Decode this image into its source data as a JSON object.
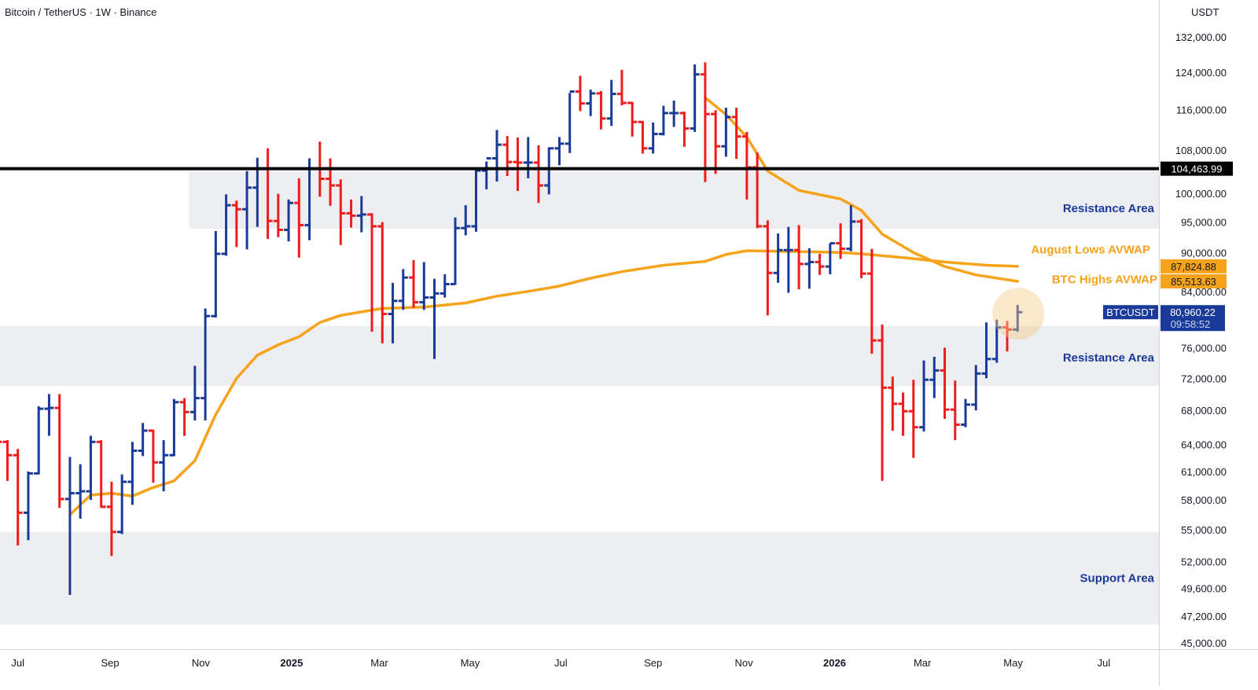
{
  "header": {
    "title": "Bitcoin / TetherUS · 1W · Binance"
  },
  "price_axis": {
    "unit": "USDT"
  },
  "colors": {
    "up": "#1a3a9a",
    "down": "#f01c1c",
    "avwap": "#f7a21b",
    "zone": "#eceef2",
    "level": "#000000",
    "label": "#1a3a9a",
    "last_price_bg": "#1a3a9a"
  },
  "chart_data": {
    "type": "ohlc",
    "title": "Bitcoin / TetherUS · 1W · Binance",
    "scale": "log",
    "ylim": [
      44500,
      140000
    ],
    "y_ticks": [
      {
        "value": 132000,
        "label": "132,000.00"
      },
      {
        "value": 124000,
        "label": "124,000.00"
      },
      {
        "value": 116000,
        "label": "116,000.00"
      },
      {
        "value": 108000,
        "label": "108,000.00"
      },
      {
        "value": 100000,
        "label": "100,000.00"
      },
      {
        "value": 95000,
        "label": "95,000.00"
      },
      {
        "value": 90000,
        "label": "90,000.00"
      },
      {
        "value": 84000,
        "label": "84,000.00"
      },
      {
        "value": 76000,
        "label": "76,000.00"
      },
      {
        "value": 72000,
        "label": "72,000.00"
      },
      {
        "value": 68000,
        "label": "68,000.00"
      },
      {
        "value": 64000,
        "label": "64,000.00"
      },
      {
        "value": 61000,
        "label": "61,000.00"
      },
      {
        "value": 58000,
        "label": "58,000.00"
      },
      {
        "value": 55000,
        "label": "55,000.00"
      },
      {
        "value": 52000,
        "label": "52,000.00"
      },
      {
        "value": 49600,
        "label": "49,600.00"
      },
      {
        "value": 47200,
        "label": "47,200.00"
      },
      {
        "value": 45000,
        "label": "45,000.00"
      }
    ],
    "x_ticks": [
      {
        "date": "2024-07-01",
        "label": "Jul",
        "bold": false
      },
      {
        "date": "2024-09-01",
        "label": "Sep",
        "bold": false
      },
      {
        "date": "2024-11-01",
        "label": "Nov",
        "bold": false
      },
      {
        "date": "2025-01-01",
        "label": "2025",
        "bold": true
      },
      {
        "date": "2025-03-01",
        "label": "Mar",
        "bold": false
      },
      {
        "date": "2025-05-01",
        "label": "May",
        "bold": false
      },
      {
        "date": "2025-07-01",
        "label": "Jul",
        "bold": false
      },
      {
        "date": "2025-09-01",
        "label": "Sep",
        "bold": false
      },
      {
        "date": "2025-11-01",
        "label": "Nov",
        "bold": false
      },
      {
        "date": "2026-01-01",
        "label": "2026",
        "bold": true
      },
      {
        "date": "2026-03-01",
        "label": "Mar",
        "bold": false
      },
      {
        "date": "2026-05-01",
        "label": "May",
        "bold": false
      },
      {
        "date": "2026-07-01",
        "label": "Jul",
        "bold": false
      }
    ],
    "x_range": [
      "2024-06-19",
      "2026-08-07"
    ],
    "zones": [
      {
        "from": 93900,
        "to": 104000,
        "start": "2024-10-24",
        "label": "Resistance Area"
      },
      {
        "from": 71000,
        "to": 79000,
        "start": "2024-06-19",
        "label": "Resistance Area"
      },
      {
        "from": 46500,
        "to": 54800,
        "start": "2024-06-19",
        "label": "Support Area"
      }
    ],
    "level": {
      "value": 104463.99,
      "label": "104,463.99"
    },
    "series": [
      {
        "name": "August Lows AVWAP",
        "last": 87824.88,
        "last_label": "87,824.88",
        "values": [
          [
            "2024-08-05",
            56500
          ],
          [
            "2024-08-19",
            58500
          ],
          [
            "2024-09-02",
            58700
          ],
          [
            "2024-09-16",
            58400
          ],
          [
            "2024-09-30",
            59300
          ],
          [
            "2024-10-14",
            60000
          ],
          [
            "2024-10-28",
            62200
          ],
          [
            "2024-11-11",
            67500
          ],
          [
            "2024-11-25",
            72000
          ],
          [
            "2024-12-09",
            75000
          ],
          [
            "2024-12-23",
            76400
          ],
          [
            "2025-01-06",
            77500
          ],
          [
            "2025-01-20",
            79500
          ],
          [
            "2025-02-03",
            80500
          ],
          [
            "2025-02-17",
            81000
          ],
          [
            "2025-03-03",
            81500
          ],
          [
            "2025-03-31",
            81700
          ],
          [
            "2025-04-28",
            82300
          ],
          [
            "2025-05-19",
            83300
          ],
          [
            "2025-06-09",
            84000
          ],
          [
            "2025-06-30",
            84800
          ],
          [
            "2025-07-21",
            86000
          ],
          [
            "2025-08-11",
            87000
          ],
          [
            "2025-09-08",
            88000
          ],
          [
            "2025-10-06",
            88600
          ],
          [
            "2025-10-20",
            89700
          ],
          [
            "2025-11-03",
            90300
          ],
          [
            "2025-11-24",
            90200
          ],
          [
            "2025-12-22",
            90100
          ],
          [
            "2026-01-05",
            90000
          ],
          [
            "2026-01-19",
            89800
          ],
          [
            "2026-02-16",
            89200
          ],
          [
            "2026-03-16",
            88500
          ],
          [
            "2026-04-13",
            88000
          ],
          [
            "2026-05-04",
            87825
          ]
        ]
      },
      {
        "name": "BTC Highs AVWAP",
        "last": 85513.63,
        "last_label": "85,513.63",
        "values": [
          [
            "2025-10-06",
            118500
          ],
          [
            "2025-10-20",
            115000
          ],
          [
            "2025-11-03",
            110500
          ],
          [
            "2025-11-17",
            104000
          ],
          [
            "2025-12-08",
            100500
          ],
          [
            "2026-01-05",
            99000
          ],
          [
            "2026-01-19",
            97000
          ],
          [
            "2026-02-02",
            93000
          ],
          [
            "2026-02-23",
            90000
          ],
          [
            "2026-03-16",
            87800
          ],
          [
            "2026-04-06",
            86500
          ],
          [
            "2026-05-04",
            85514
          ]
        ]
      }
    ],
    "ohlc": [
      [
        "2024-06-17",
        67200,
        67600,
        64000,
        64300
      ],
      [
        "2024-06-24",
        64300,
        64500,
        60000,
        62800
      ],
      [
        "2024-07-01",
        62800,
        63500,
        53500,
        56700
      ],
      [
        "2024-07-08",
        56700,
        61000,
        54000,
        60800
      ],
      [
        "2024-07-15",
        60800,
        68500,
        60700,
        68200
      ],
      [
        "2024-07-22",
        68200,
        70000,
        65000,
        68300
      ],
      [
        "2024-07-29",
        68300,
        70000,
        57200,
        58100
      ],
      [
        "2024-08-05",
        58100,
        62600,
        49000,
        58700
      ],
      [
        "2024-08-12",
        58700,
        61800,
        56100,
        58900
      ],
      [
        "2024-08-19",
        58900,
        65000,
        58000,
        64300
      ],
      [
        "2024-08-26",
        64300,
        64500,
        57200,
        57300
      ],
      [
        "2024-09-02",
        57300,
        59900,
        52500,
        54800
      ],
      [
        "2024-09-09",
        54800,
        60700,
        54600,
        59900
      ],
      [
        "2024-09-16",
        59900,
        64300,
        57500,
        63300
      ],
      [
        "2024-09-23",
        63300,
        66500,
        62700,
        65600
      ],
      [
        "2024-09-30",
        65600,
        65700,
        59800,
        62000
      ],
      [
        "2024-10-07",
        62000,
        64500,
        58900,
        62800
      ],
      [
        "2024-10-14",
        62800,
        69400,
        62700,
        69000
      ],
      [
        "2024-10-21",
        69000,
        69500,
        65000,
        67800
      ],
      [
        "2024-10-28",
        67800,
        73600,
        66800,
        69500
      ],
      [
        "2024-11-04",
        69500,
        81500,
        66800,
        80400
      ],
      [
        "2024-11-11",
        80400,
        93500,
        80200,
        89800
      ],
      [
        "2024-11-18",
        89800,
        99800,
        89500,
        97900
      ],
      [
        "2024-11-25",
        97900,
        98700,
        90900,
        97200
      ],
      [
        "2024-12-02",
        97200,
        104000,
        90500,
        101000
      ],
      [
        "2024-12-09",
        101000,
        106500,
        94200,
        104500
      ],
      [
        "2024-12-16",
        104500,
        108300,
        92200,
        95200
      ],
      [
        "2024-12-23",
        95200,
        99900,
        92500,
        93700
      ],
      [
        "2024-12-30",
        93700,
        98900,
        91800,
        98300
      ],
      [
        "2025-01-06",
        98300,
        102700,
        89200,
        94500
      ],
      [
        "2025-01-13",
        94500,
        106400,
        92000,
        104500
      ],
      [
        "2025-01-20",
        104500,
        109600,
        99400,
        102600
      ],
      [
        "2025-01-27",
        102600,
        106400,
        97800,
        101400
      ],
      [
        "2025-02-03",
        101400,
        102500,
        91200,
        96500
      ],
      [
        "2025-02-10",
        96500,
        98900,
        94100,
        96100
      ],
      [
        "2025-02-17",
        96100,
        99500,
        93300,
        96300
      ],
      [
        "2025-02-24",
        96300,
        96500,
        78200,
        94300
      ],
      [
        "2025-03-03",
        94300,
        95000,
        76600,
        80700
      ],
      [
        "2025-03-10",
        80700,
        85300,
        76600,
        82600
      ],
      [
        "2025-03-17",
        82600,
        87400,
        81300,
        86100
      ],
      [
        "2025-03-24",
        86100,
        88800,
        81600,
        82400
      ],
      [
        "2025-03-31",
        82400,
        88500,
        81300,
        83100
      ],
      [
        "2025-04-07",
        83100,
        85900,
        74500,
        83700
      ],
      [
        "2025-04-14",
        83700,
        86600,
        83100,
        85100
      ],
      [
        "2025-04-21",
        85100,
        95800,
        85000,
        94000
      ],
      [
        "2025-04-28",
        94000,
        97900,
        92800,
        94300
      ],
      [
        "2025-05-05",
        94300,
        104300,
        93400,
        104100
      ],
      [
        "2025-05-12",
        104100,
        105800,
        100700,
        106400
      ],
      [
        "2025-05-19",
        106400,
        111900,
        102100,
        109000
      ],
      [
        "2025-05-26",
        109000,
        110700,
        103100,
        105700
      ],
      [
        "2025-06-02",
        105700,
        110400,
        100400,
        105600
      ],
      [
        "2025-06-09",
        105600,
        110500,
        102700,
        105600
      ],
      [
        "2025-06-16",
        105600,
        108900,
        98300,
        101400
      ],
      [
        "2025-06-23",
        101400,
        108500,
        99800,
        108300
      ],
      [
        "2025-06-30",
        108300,
        110500,
        105100,
        109200
      ],
      [
        "2025-07-07",
        109200,
        119500,
        107400,
        119800
      ],
      [
        "2025-07-14",
        119800,
        123200,
        115700,
        117300
      ],
      [
        "2025-07-21",
        117300,
        120200,
        114700,
        119400
      ],
      [
        "2025-07-28",
        119400,
        119900,
        112000,
        114200
      ],
      [
        "2025-08-04",
        114200,
        122300,
        112700,
        119300
      ],
      [
        "2025-08-11",
        119300,
        124500,
        116900,
        117400
      ],
      [
        "2025-08-18",
        117400,
        117600,
        110600,
        113500
      ],
      [
        "2025-08-25",
        113500,
        113700,
        107300,
        108300
      ],
      [
        "2025-09-01",
        108300,
        113400,
        107300,
        111100
      ],
      [
        "2025-09-08",
        111100,
        116800,
        110800,
        115300
      ],
      [
        "2025-09-15",
        115300,
        117900,
        112500,
        115300
      ],
      [
        "2025-09-22",
        115300,
        115600,
        108600,
        112200
      ],
      [
        "2025-09-29",
        112200,
        125700,
        111500,
        123500
      ],
      [
        "2025-10-06",
        123500,
        126200,
        102000,
        115100
      ],
      [
        "2025-10-13",
        115100,
        115900,
        103500,
        108700
      ],
      [
        "2025-10-20",
        108700,
        116400,
        106700,
        114500
      ],
      [
        "2025-10-27",
        114500,
        116400,
        106300,
        110600
      ],
      [
        "2025-11-03",
        110600,
        111500,
        98900,
        104700
      ],
      [
        "2025-11-10",
        104700,
        107500,
        94000,
        94300
      ],
      [
        "2025-11-17",
        94300,
        95300,
        80500,
        86800
      ],
      [
        "2025-11-24",
        86800,
        93100,
        85300,
        90400
      ],
      [
        "2025-12-01",
        90400,
        94200,
        83800,
        90400
      ],
      [
        "2025-12-08",
        90400,
        94500,
        84300,
        88200
      ],
      [
        "2025-12-15",
        88200,
        90700,
        84400,
        88500
      ],
      [
        "2025-12-22",
        88500,
        89800,
        86500,
        87800
      ],
      [
        "2025-12-29",
        87800,
        91500,
        86600,
        91500
      ],
      [
        "2026-01-05",
        91500,
        94800,
        89000,
        90600
      ],
      [
        "2026-01-12",
        90600,
        97900,
        90200,
        95100
      ],
      [
        "2026-01-19",
        95100,
        95500,
        86000,
        86700
      ],
      [
        "2026-01-26",
        86700,
        90600,
        75200,
        77000
      ],
      [
        "2026-02-02",
        77000,
        79200,
        60000,
        70800
      ],
      [
        "2026-02-09",
        70800,
        72200,
        65600,
        68800
      ],
      [
        "2026-02-16",
        68800,
        70200,
        65000,
        67900
      ],
      [
        "2026-02-23",
        67900,
        71800,
        62500,
        66000
      ],
      [
        "2026-03-02",
        66000,
        74300,
        65500,
        71800
      ],
      [
        "2026-03-09",
        71800,
        74800,
        69500,
        73000
      ],
      [
        "2026-03-16",
        73000,
        76000,
        67000,
        68100
      ],
      [
        "2026-03-23",
        68100,
        71700,
        64500,
        66300
      ],
      [
        "2026-03-30",
        66300,
        69400,
        66000,
        68700
      ],
      [
        "2026-04-06",
        68700,
        73700,
        68000,
        72600
      ],
      [
        "2026-04-13",
        72600,
        79500,
        72000,
        74500
      ],
      [
        "2026-04-20",
        74500,
        79900,
        74000,
        78800
      ],
      [
        "2026-04-27",
        78800,
        79700,
        75500,
        78500
      ],
      [
        "2026-05-04",
        78500,
        82000,
        78200,
        80960
      ]
    ],
    "annotations": [
      {
        "text": "Resistance Area"
      },
      {
        "text": "August Lows AVWAP"
      },
      {
        "text": "BTC Highs AVWAP"
      },
      {
        "text": "Resistance Area"
      },
      {
        "text": "Support Area"
      }
    ],
    "last_price": {
      "symbol": "BTCUSDT",
      "value": 80960.22,
      "value_label": "80,960.22",
      "countdown": "09:58:52"
    },
    "grid": false,
    "legend": "none"
  }
}
